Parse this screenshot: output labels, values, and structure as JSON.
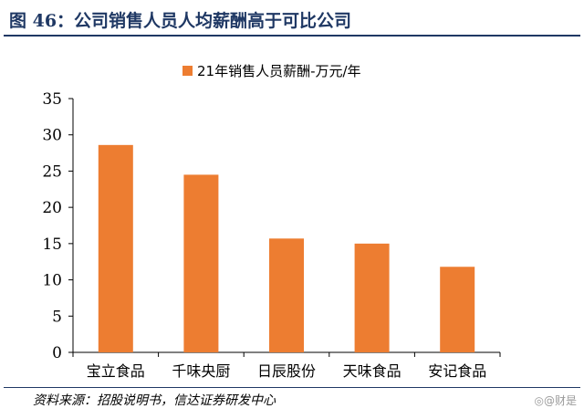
{
  "header": {
    "title": "图 46：公司销售人员人均薪酬高于可比公司"
  },
  "chart_data": {
    "type": "bar",
    "categories": [
      "宝立食品",
      "千味央厨",
      "日辰股份",
      "天味食品",
      "安记食品"
    ],
    "series": [
      {
        "name": "21年销售人员薪酬-万元/年",
        "values": [
          28.6,
          24.5,
          15.7,
          15.0,
          11.8
        ],
        "color": "#ed7d31"
      }
    ],
    "ylim": [
      0,
      35
    ],
    "yticks": [
      "0",
      "5",
      "10",
      "15",
      "20",
      "25",
      "30",
      "35"
    ],
    "grid": false,
    "legend_position": "top-center"
  },
  "footer": {
    "source": "资料来源：招股说明书，信达证券研发中心",
    "watermark": "◎@财是"
  }
}
